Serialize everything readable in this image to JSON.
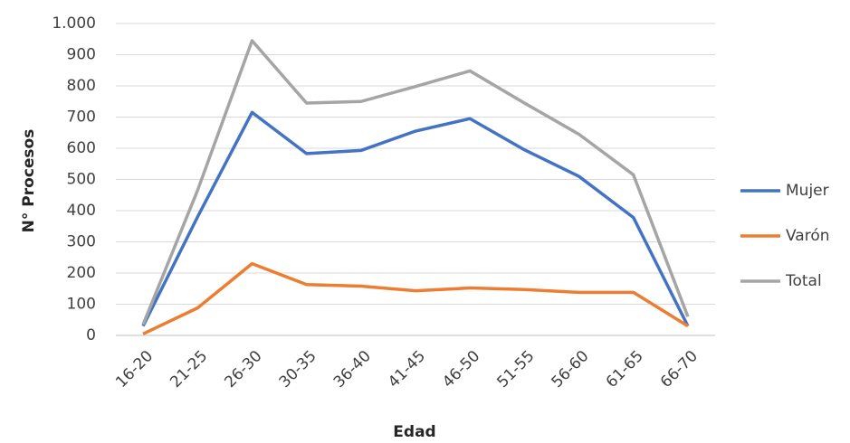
{
  "chart_data": {
    "type": "line",
    "x_label": "Edad",
    "y_label": "N° Procesos",
    "categories": [
      "16-20",
      "21-25",
      "26-30",
      "30-35",
      "36-40",
      "41-45",
      "46-50",
      "51-55",
      "56-60",
      "61-65",
      "66-70"
    ],
    "series": [
      {
        "name": "Mujer",
        "color": "#4472c4",
        "values": [
          30,
          380,
          715,
          583,
          593,
          655,
          695,
          595,
          510,
          378,
          30
        ]
      },
      {
        "name": "Varón",
        "color": "#ed7d31",
        "values": [
          5,
          88,
          230,
          163,
          158,
          143,
          152,
          147,
          138,
          138,
          30
        ]
      },
      {
        "name": "Total",
        "color": "#a5a5a5",
        "values": [
          35,
          465,
          945,
          745,
          750,
          798,
          848,
          745,
          645,
          515,
          60
        ]
      }
    ],
    "ylim": [
      0,
      1000
    ],
    "yticks": [
      0,
      100,
      200,
      300,
      400,
      500,
      600,
      700,
      800,
      900,
      {
        "value": 1000,
        "label": "1.000"
      }
    ],
    "grid": true,
    "legend": "right"
  }
}
